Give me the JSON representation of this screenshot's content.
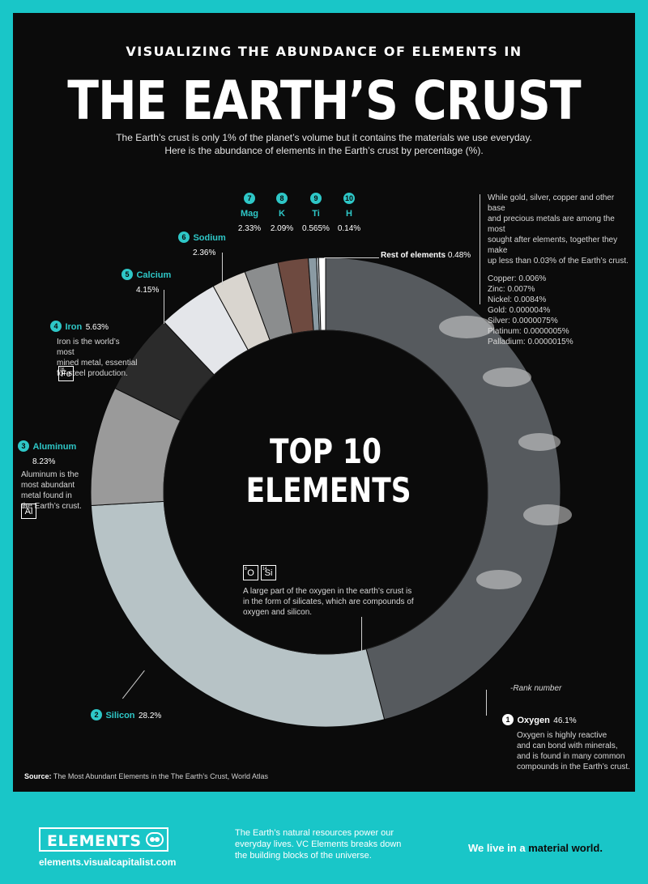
{
  "header": {
    "supertitle": "VISUALIZING THE ABUNDANCE OF ELEMENTS IN",
    "title": "THE EARTH’S CRUST",
    "subtitle_line1": "The Earth’s crust is only 1% of the planet’s volume but it contains the materials we use everyday.",
    "subtitle_line2": "Here is the abundance of elements in the Earth’s crust by percentage (%)."
  },
  "center": {
    "line1": "TOP 10",
    "line2": "ELEMENTS"
  },
  "chart_data": {
    "type": "pie",
    "title": "THE EARTH’S CRUST",
    "units": "%",
    "slices": [
      {
        "rank": 1,
        "name": "Oxygen",
        "value": 46.1,
        "label": "46.1%",
        "color": "#565a5e"
      },
      {
        "rank": 2,
        "name": "Silicon",
        "value": 28.2,
        "label": "28.2%",
        "color": "#b7c3c6"
      },
      {
        "rank": 3,
        "name": "Aluminum",
        "value": 8.23,
        "label": "8.23%",
        "color": "#9a9a9a"
      },
      {
        "rank": 4,
        "name": "Iron",
        "value": 5.63,
        "label": "5.63%",
        "color": "#2b2b2b"
      },
      {
        "rank": 5,
        "name": "Calcium",
        "value": 4.15,
        "label": "4.15%",
        "color": "#e4e6ea"
      },
      {
        "rank": 6,
        "name": "Sodium",
        "value": 2.36,
        "label": "2.36%",
        "color": "#d9d5cf"
      },
      {
        "rank": 7,
        "name": "Mag",
        "value": 2.33,
        "label": "2.33%",
        "color": "#8b8d8e"
      },
      {
        "rank": 8,
        "name": "K",
        "value": 2.09,
        "label": "2.09%",
        "color": "#6e4a40"
      },
      {
        "rank": 9,
        "name": "Ti",
        "value": 0.565,
        "label": "0.565%",
        "color": "#8a9aa3"
      },
      {
        "rank": 10,
        "name": "H",
        "value": 0.14,
        "label": "0.14%",
        "color": "#c9d0d6"
      },
      {
        "rank": null,
        "name": "Rest of elements",
        "value": 0.48,
        "label": "0.48%",
        "color": "#ffffff"
      }
    ]
  },
  "labels": {
    "oxygen": {
      "num": "1",
      "name": "Oxygen",
      "pct": "46.1%",
      "desc": [
        "Oxygen is highly reactive",
        "and can bond with minerals,",
        "and is found in many common",
        "compounds in the Earth’s crust."
      ],
      "rank_note": "-Rank number"
    },
    "silicon": {
      "num": "2",
      "name": "Silicon",
      "pct": "28.2%"
    },
    "aluminum": {
      "num": "3",
      "name": "Aluminum",
      "pct": "8.23%",
      "desc": [
        "Aluminum is  the",
        "most abundant",
        "metal found in",
        "the Earth’s crust."
      ],
      "symbol": "Al",
      "atomic": "13"
    },
    "iron": {
      "num": "4",
      "name": "Iron",
      "pct": "5.63%",
      "desc": [
        "Iron is the world’s most",
        "mined metal, essential",
        "for steel production."
      ],
      "symbol": "Fe",
      "atomic": "26"
    },
    "calcium": {
      "num": "5",
      "name": "Calcium",
      "pct": "4.15%"
    },
    "sodium": {
      "num": "6",
      "name": "Sodium",
      "pct": "2.36%"
    },
    "mag": {
      "num": "7",
      "name": "Mag",
      "pct": "2.33%"
    },
    "k": {
      "num": "8",
      "name": "K",
      "pct": "2.09%"
    },
    "ti": {
      "num": "9",
      "name": "Ti",
      "pct": "0.565%"
    },
    "h": {
      "num": "10",
      "name": "H",
      "pct": "0.14%"
    },
    "rest": {
      "name": "Rest of elements",
      "pct": "0.48%"
    }
  },
  "silicates": {
    "symbols": [
      {
        "sym": "O",
        "atomic": "8"
      },
      {
        "sym": "Si",
        "atomic": "14"
      }
    ],
    "desc": [
      "A large part of the oxygen in the earth’s crust is",
      "in the form of silicates, which are compounds of",
      "oxygen and silicon."
    ]
  },
  "precious_note": {
    "desc": [
      "While gold, silver, copper and other base",
      "and precious metals are among the most",
      "sought after elements, together they make",
      "up less than 0.03% of the Earth’s crust."
    ],
    "items": [
      "Copper: 0.006%",
      "Zinc: 0.007%",
      "Nickel: 0.0084%",
      "Gold: 0.000004%",
      "Silver: 0.0000075%",
      "Platinum: 0.0000005%",
      "Palladium: 0.0000015%"
    ]
  },
  "source": {
    "label": "Source:",
    "text": "The Most Abundant Elements in the The Earth’s Crust, World Atlas"
  },
  "footer": {
    "logo": "ELEMENTS",
    "url": "elements.visualcapitalist.com",
    "blurb": [
      "The Earth’s natural resources power our",
      "everyday lives. VC Elements breaks down",
      "the building blocks of the universe."
    ],
    "tagline_a": "We live in a ",
    "tagline_b": "material world."
  },
  "colors": {
    "accent": "#2ec7c7",
    "background": "#0b0b0b",
    "footer": "#19c6c8"
  }
}
